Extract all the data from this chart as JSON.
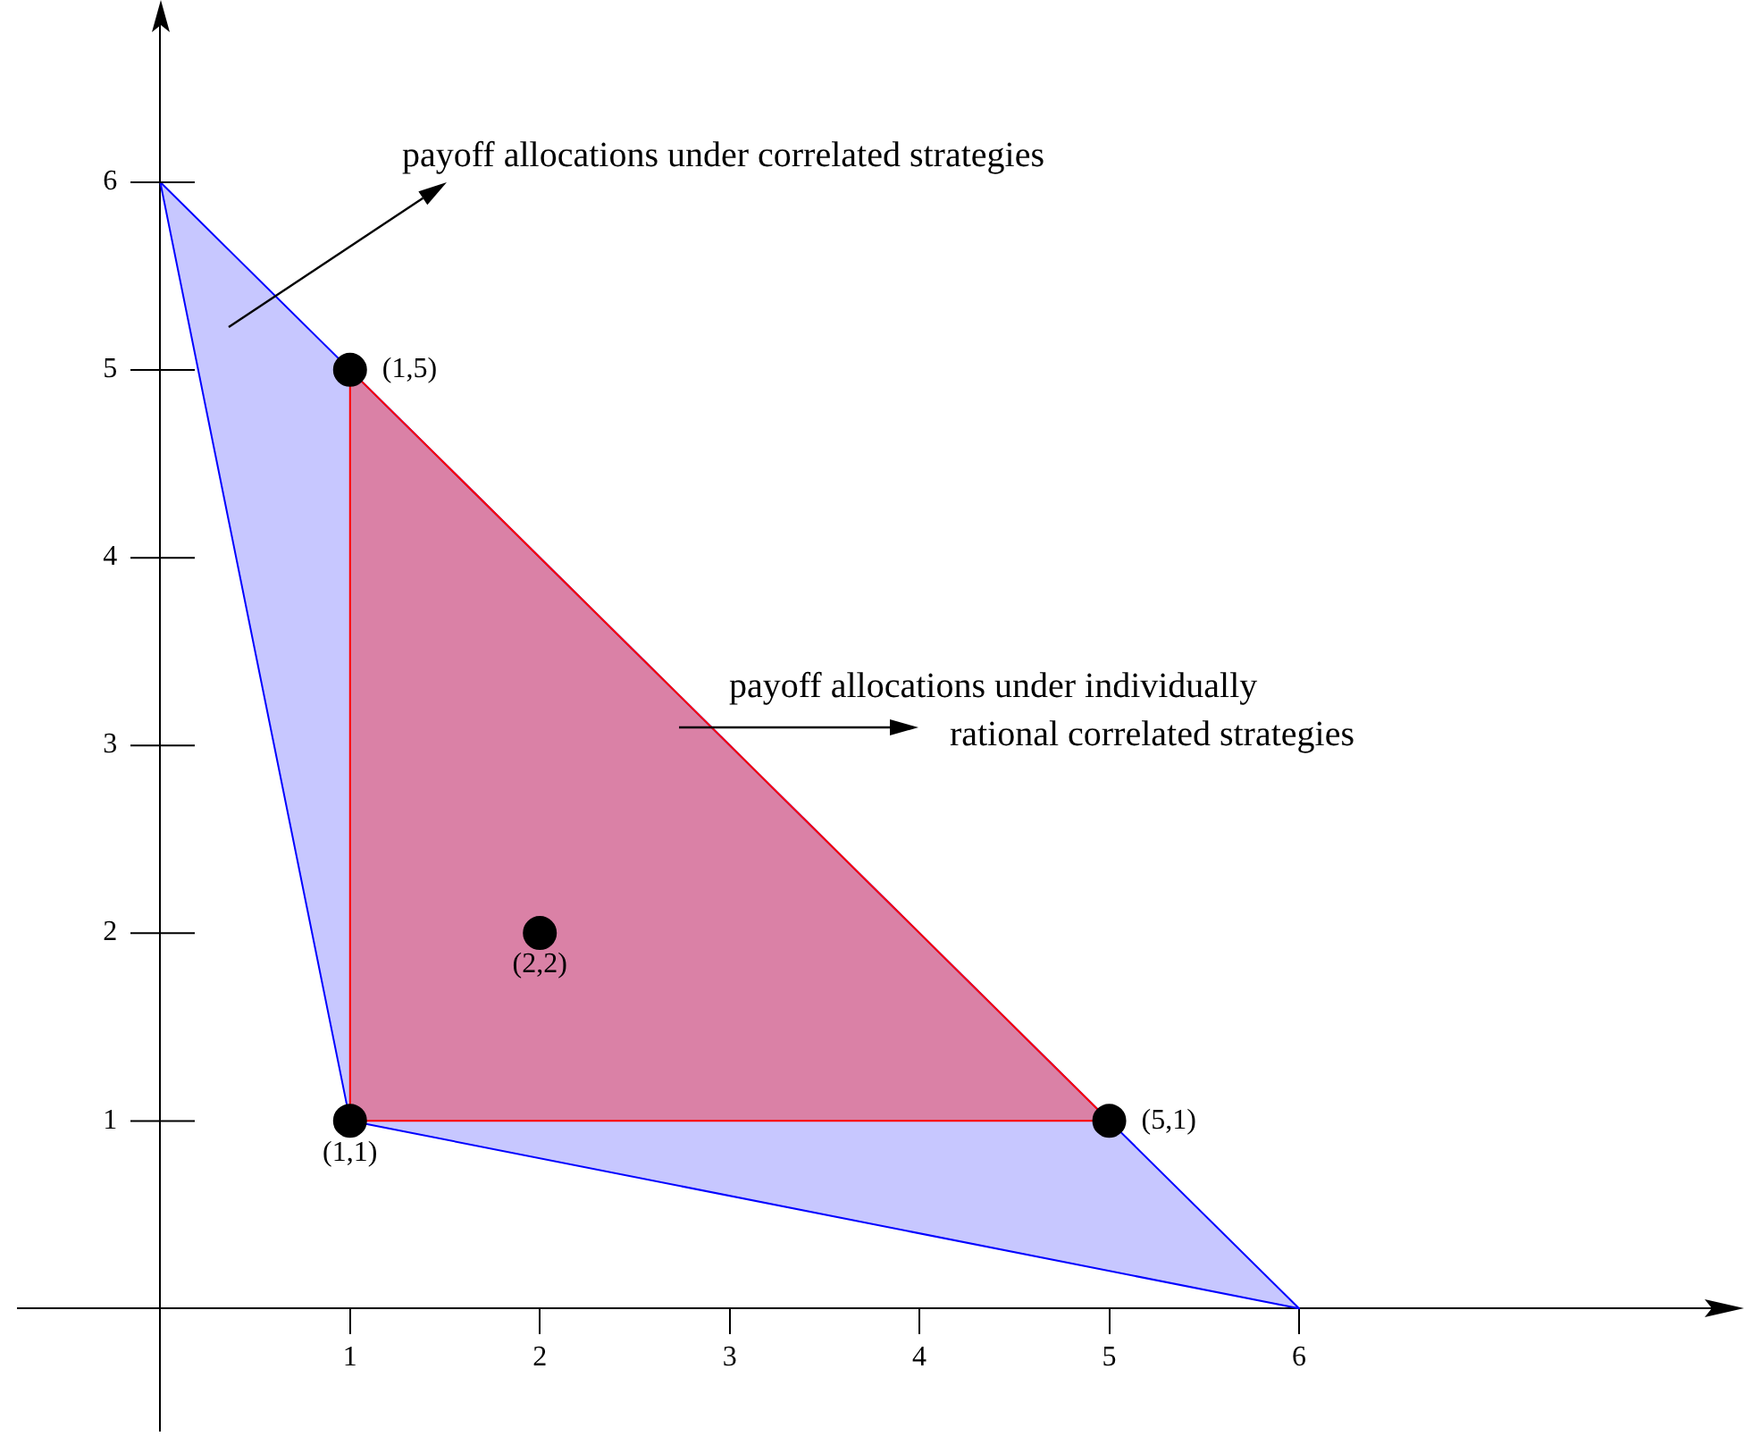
{
  "chart_data": {
    "type": "scatter",
    "xlim": [
      -0.75,
      8.25
    ],
    "ylim": [
      -0.65,
      6.85
    ],
    "xticks": [
      1,
      2,
      3,
      4,
      5,
      6
    ],
    "yticks": [
      1,
      2,
      3,
      4,
      5,
      6
    ],
    "grid": false,
    "legend": false,
    "series": [
      {
        "type": "area",
        "color": "#0000ff",
        "x": [
          0,
          1,
          6,
          0
        ],
        "values": [
          6,
          1,
          0,
          6
        ]
      },
      {
        "type": "area",
        "color": "#ff0000",
        "x": [
          1,
          1,
          5,
          1
        ],
        "values": [
          1,
          5,
          1,
          1
        ]
      },
      {
        "type": "scatter",
        "color": "#000000",
        "marker": "circle",
        "x": [
          1,
          1,
          2,
          5
        ],
        "values": [
          5,
          1,
          2,
          1
        ]
      }
    ],
    "annotations": [
      "payoff allocations under correlated strategies",
      "payoff allocations under individually rational correlated strategies",
      {
        "text": "(1,5)",
        "x": 1,
        "y": 5
      },
      {
        "text": "(1,1)",
        "x": 1,
        "y": 1
      },
      {
        "text": "(2,2)",
        "x": 2,
        "y": 2
      },
      {
        "text": "(5,1)",
        "x": 5,
        "y": 1
      }
    ]
  }
}
